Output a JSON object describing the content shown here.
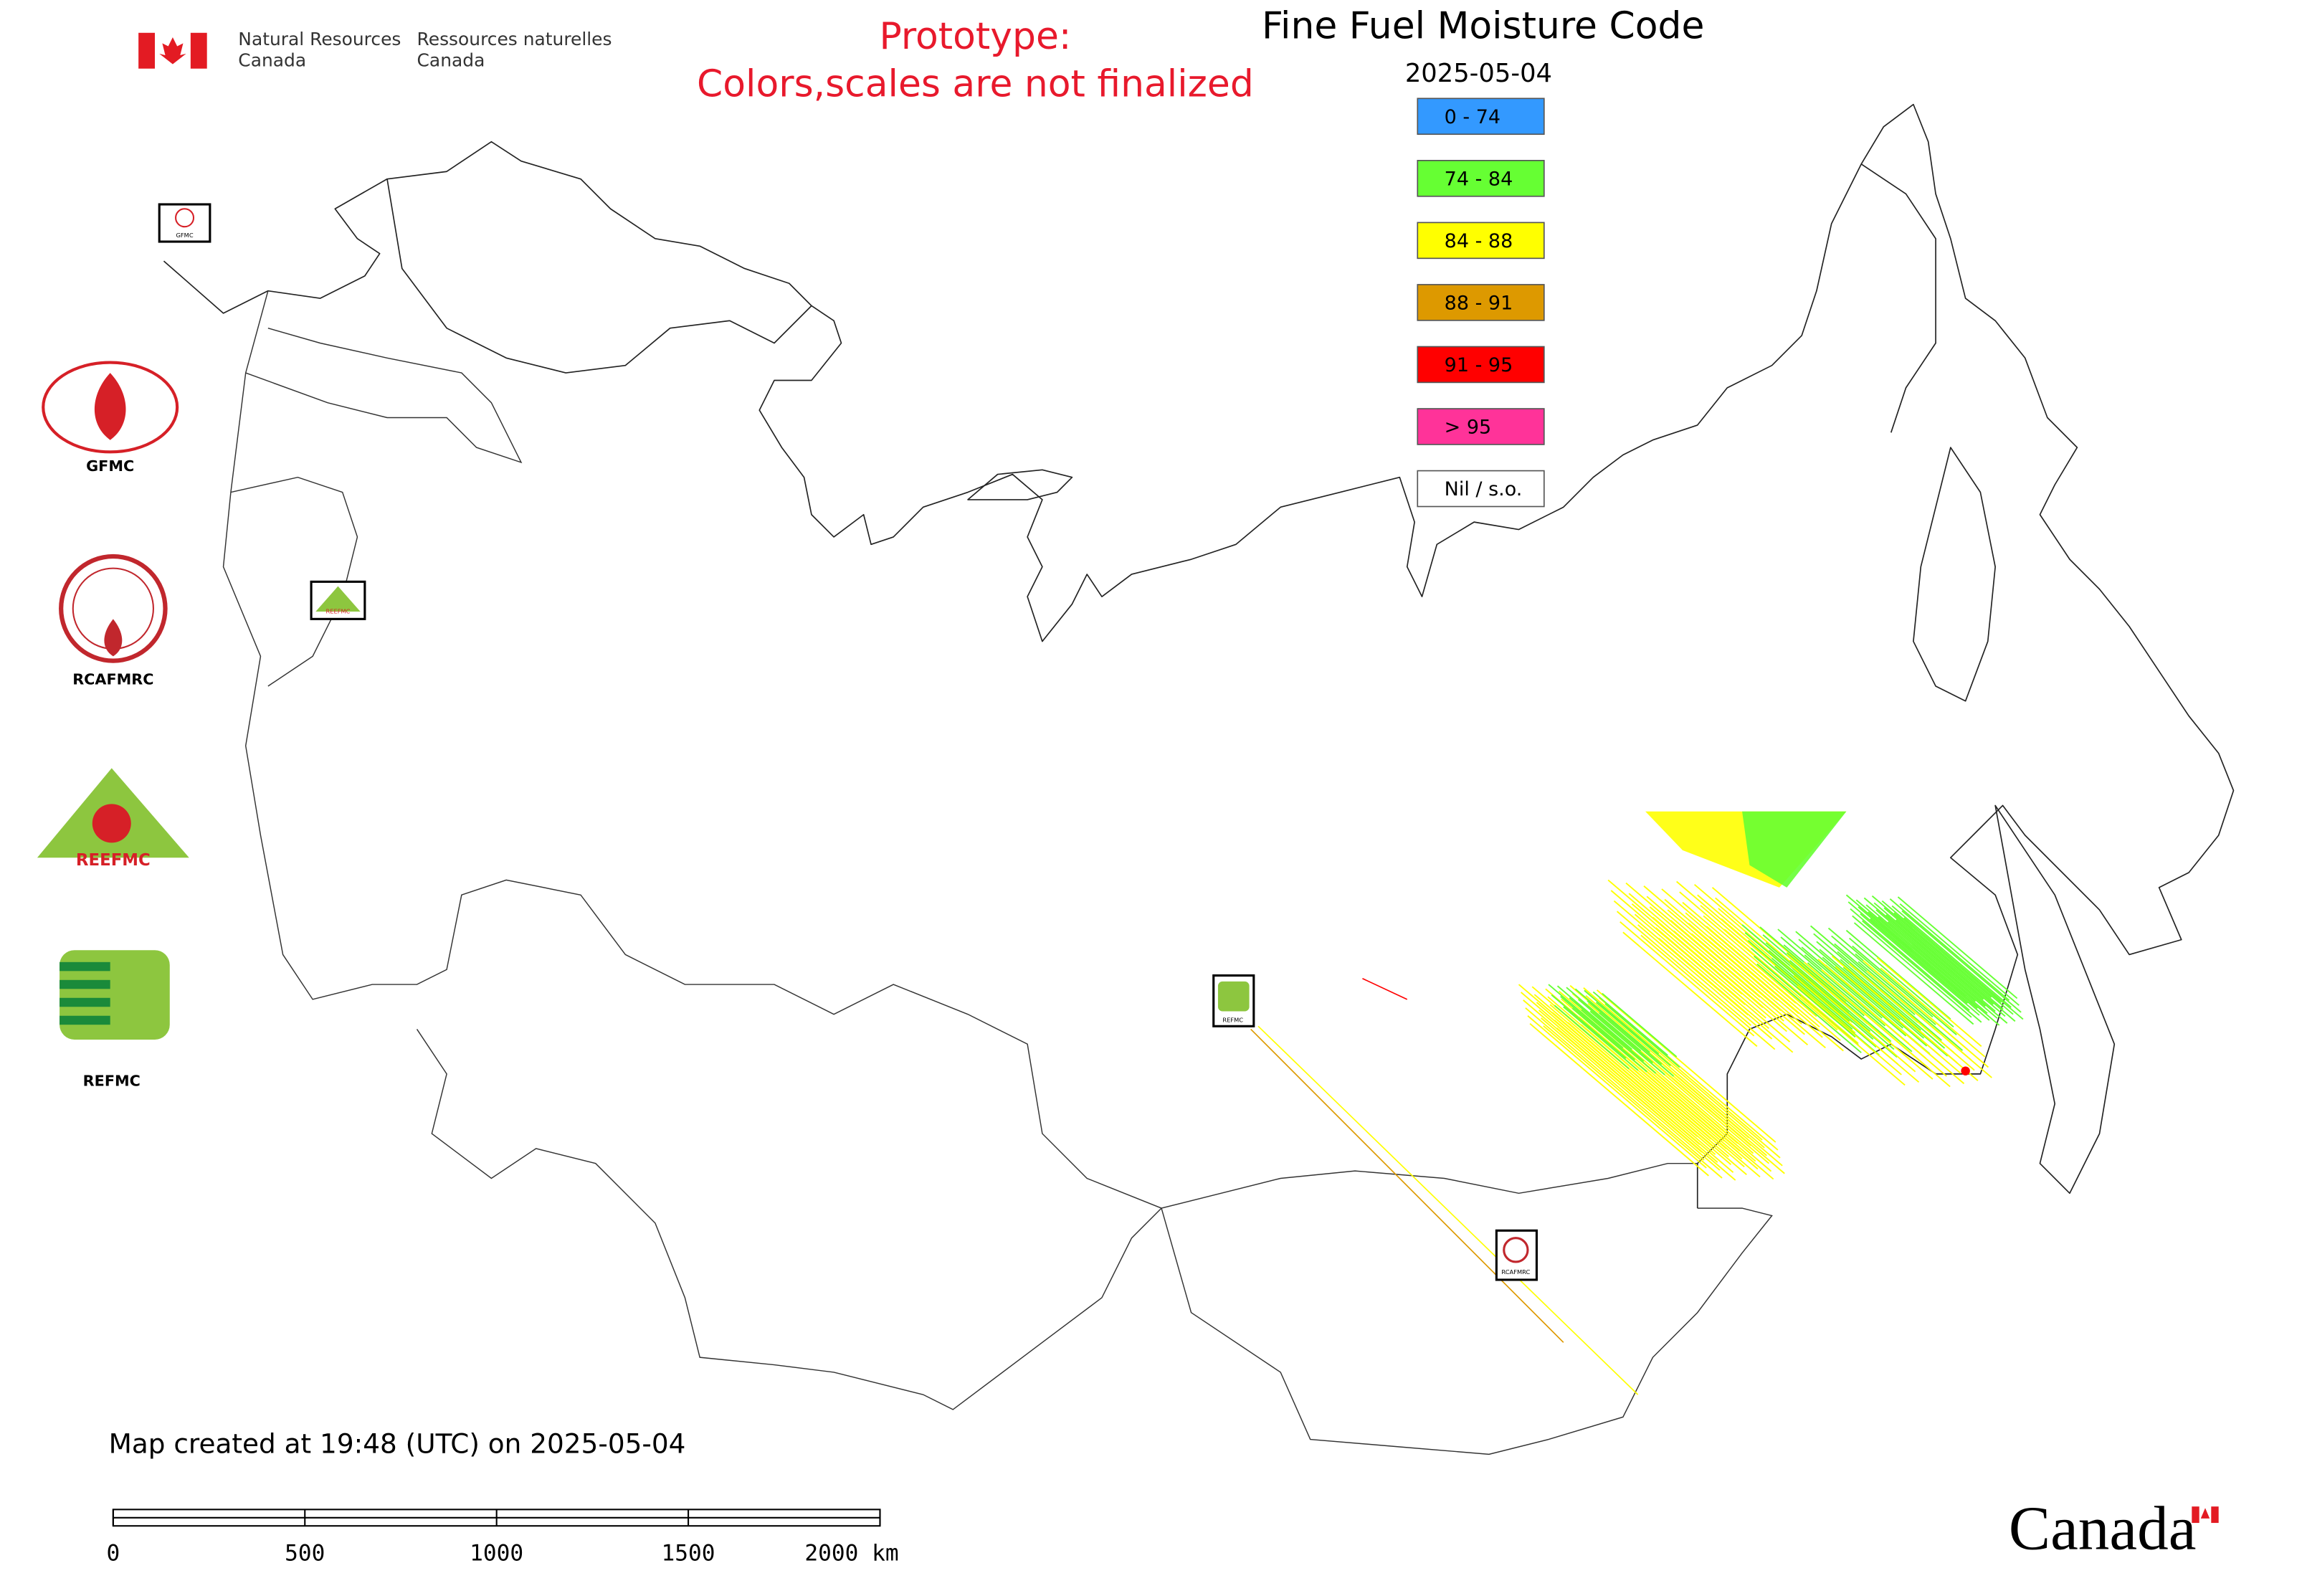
{
  "header": {
    "agency_en": [
      "Natural Resources",
      "Canada"
    ],
    "agency_fr": [
      "Ressources naturelles",
      "Canada"
    ],
    "notice": [
      "Prototype:",
      "Colors,scales are not finalized"
    ],
    "title": "Fine Fuel Moisture Code",
    "date": "2025-05-04"
  },
  "legend": [
    {
      "label": "0 - 74",
      "color": "#3399ff"
    },
    {
      "label": "74 - 84",
      "color": "#66ff33"
    },
    {
      "label": "84 - 88",
      "color": "#ffff00"
    },
    {
      "label": "88 - 91",
      "color": "#dd9900"
    },
    {
      "label": "91 - 95",
      "color": "#ff0000"
    },
    {
      "label": "> 95",
      "color": "#ff3399"
    },
    {
      "label": "Nil / s.o.",
      "color": "#ffffff"
    }
  ],
  "logos": [
    "GFMC",
    "RCAFMRC",
    "REEFMC",
    "REFMC"
  ],
  "map_markers": [
    "GFMC",
    "REEFMC",
    "REFMC",
    "RCAFMRC"
  ],
  "footer": {
    "created": "Map created at 19:48 (UTC) on 2025-05-04",
    "scale_labels": [
      "0",
      "500",
      "1000",
      "1500",
      "2000 km"
    ],
    "wordmark": "Canada"
  }
}
